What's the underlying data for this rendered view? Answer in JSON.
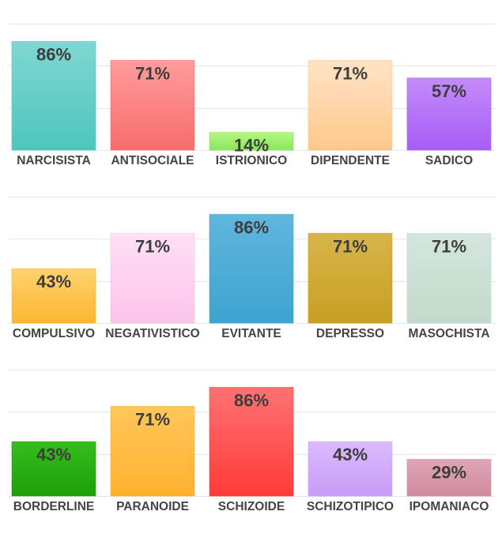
{
  "chart_data": [
    {
      "type": "bar",
      "title": "",
      "ylim": [
        0,
        100
      ],
      "grid": true,
      "categories": [
        "NARCISISTA",
        "ANTISOCIALE",
        "ISTRIONICO",
        "DIPENDENTE",
        "SADICO"
      ],
      "values": [
        86,
        71,
        14,
        71,
        57
      ],
      "labels": [
        "86%",
        "71%",
        "14%",
        "71%",
        "57%"
      ],
      "colors": [
        [
          "#7fd7d2",
          "#4ec6bd"
        ],
        [
          "#ff9c9c",
          "#f76c6c"
        ],
        [
          "#b3f784",
          "#8be65c"
        ],
        [
          "#ffe3c6",
          "#ffc88a"
        ],
        [
          "#c48bfb",
          "#a65df5"
        ]
      ]
    },
    {
      "type": "bar",
      "title": "",
      "ylim": [
        0,
        100
      ],
      "grid": true,
      "categories": [
        "COMPULSIVO",
        "NEGATIVISTICO",
        "EVITANTE",
        "DEPRESSO",
        "MASOCHISTA"
      ],
      "values": [
        43,
        71,
        86,
        71,
        71
      ],
      "labels": [
        "43%",
        "71%",
        "86%",
        "71%",
        "71%"
      ],
      "colors": [
        [
          "#ffd36e",
          "#fbb632"
        ],
        [
          "#ffe0f5",
          "#fbc3ea"
        ],
        [
          "#60b6de",
          "#3ea3cf"
        ],
        [
          "#d8b54a",
          "#c79f22"
        ],
        [
          "#d4e6dc",
          "#c2dacc"
        ]
      ]
    },
    {
      "type": "bar",
      "title": "",
      "ylim": [
        0,
        100
      ],
      "grid": true,
      "categories": [
        "BORDERLINE",
        "PARANOIDE",
        "SCHIZOIDE",
        "SCHIZOTIPICO",
        "IPOMANIACO"
      ],
      "values": [
        43,
        71,
        86,
        43,
        29
      ],
      "labels": [
        "43%",
        "71%",
        "86%",
        "43%",
        "29%"
      ],
      "colors": [
        [
          "#35bd1c",
          "#1f9e0c"
        ],
        [
          "#ffc75a",
          "#ffb02e"
        ],
        [
          "#ff7272",
          "#ff3a3a"
        ],
        [
          "#dcbaff",
          "#c79cf6"
        ],
        [
          "#e0a6b6",
          "#cf8a9c"
        ]
      ]
    }
  ]
}
